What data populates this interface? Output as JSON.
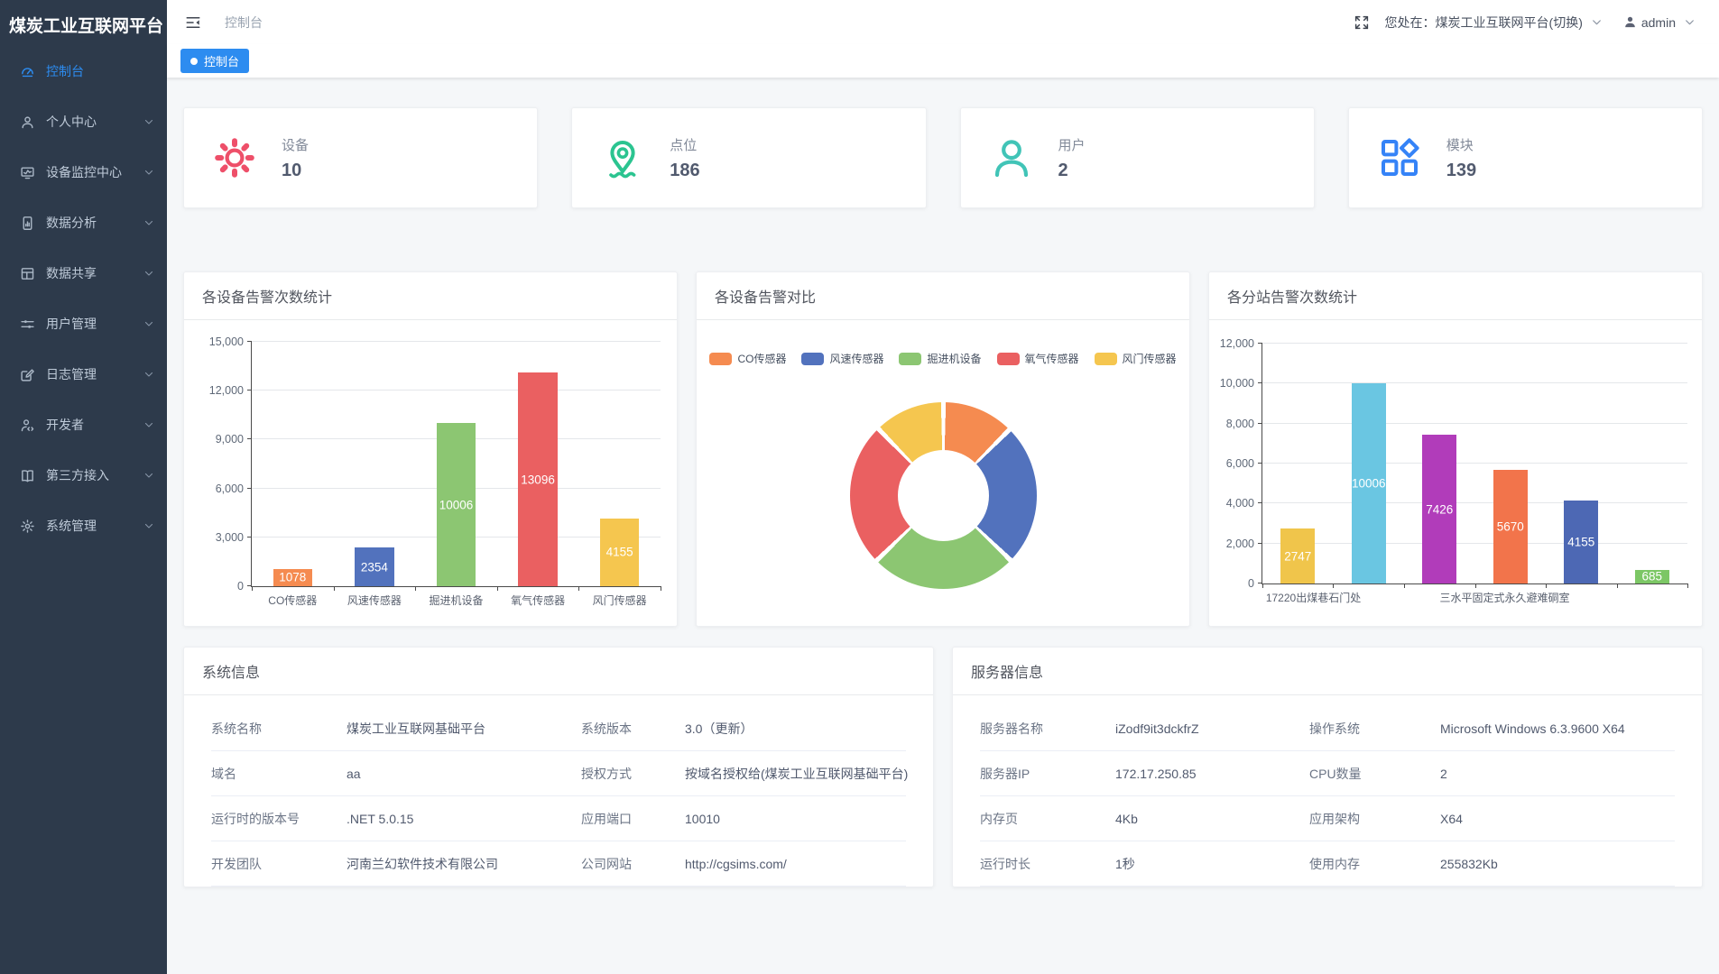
{
  "app": {
    "title": "煤炭工业互联网平台"
  },
  "colors": {
    "primary": "#2d8cf0",
    "sidebar_bg": "#2d3a4b",
    "device_palette": [
      "#f58b50",
      "#5272bd",
      "#8cc672",
      "#ea6061",
      "#f5c64f"
    ],
    "station_palette": [
      "#f0c54b",
      "#6ac6e2",
      "#b13cba",
      "#f2744b",
      "#4d68b4",
      "#7cc765"
    ]
  },
  "sidebar": {
    "items": [
      {
        "id": "console",
        "label": "控制台",
        "icon": "dashboard-icon",
        "active": true,
        "expandable": false
      },
      {
        "id": "personal",
        "label": "个人中心",
        "icon": "person-icon",
        "active": false,
        "expandable": true
      },
      {
        "id": "device-monitor",
        "label": "设备监控中心",
        "icon": "monitor-icon",
        "active": false,
        "expandable": true
      },
      {
        "id": "data-analysis",
        "label": "数据分析",
        "icon": "phone-chart-icon",
        "active": false,
        "expandable": true
      },
      {
        "id": "data-share",
        "label": "数据共享",
        "icon": "news-icon",
        "active": false,
        "expandable": true
      },
      {
        "id": "user-manage",
        "label": "用户管理",
        "icon": "sliders-icon",
        "active": false,
        "expandable": true
      },
      {
        "id": "log-manage",
        "label": "日志管理",
        "icon": "edit-square-icon",
        "active": false,
        "expandable": true
      },
      {
        "id": "developer",
        "label": "开发者",
        "icon": "dev-person-icon",
        "active": false,
        "expandable": true
      },
      {
        "id": "third-party",
        "label": "第三方接入",
        "icon": "book-icon",
        "active": false,
        "expandable": true
      },
      {
        "id": "system-manage",
        "label": "系统管理",
        "icon": "gear-small-icon",
        "active": false,
        "expandable": true
      }
    ]
  },
  "header": {
    "breadcrumb": "控制台",
    "location_label": "您处在：煤炭工业互联网平台(切换)",
    "user": "admin"
  },
  "tabs": [
    {
      "label": "控制台",
      "active": true
    }
  ],
  "stats": [
    {
      "label": "设备",
      "value": "10",
      "icon": "gear-big-icon",
      "color": "#ee4f69"
    },
    {
      "label": "点位",
      "value": "186",
      "icon": "location-pin-icon",
      "color": "#2bc490"
    },
    {
      "label": "用户",
      "value": "2",
      "icon": "users-icon",
      "color": "#41c4b7"
    },
    {
      "label": "模块",
      "value": "139",
      "icon": "modules-icon",
      "color": "#3583f7"
    }
  ],
  "chart_data": [
    {
      "type": "bar",
      "title": "各设备告警次数统计",
      "categories": [
        "CO传感器",
        "风速传感器",
        "掘进机设备",
        "氧气传感器",
        "风门传感器"
      ],
      "values": [
        1078,
        2354,
        10006,
        13096,
        4155
      ],
      "colors": [
        "#f58b50",
        "#5272bd",
        "#8cc672",
        "#ea6061",
        "#f5c64f"
      ],
      "ylim": [
        0,
        15000
      ],
      "ytick_step": 3000,
      "grid": true,
      "value_labels": "inside-white"
    },
    {
      "type": "pie",
      "subtype": "donut",
      "title": "各设备告警对比",
      "legend_position": "top",
      "categories": [
        "CO传感器",
        "风速传感器",
        "掘进机设备",
        "氧气传感器",
        "风门传感器"
      ],
      "colors": [
        "#f58b50",
        "#5272bd",
        "#8cc672",
        "#ea6061",
        "#f5c64f"
      ],
      "proportions_pct_estimated": [
        12.5,
        24.7,
        25.5,
        25.0,
        12.3
      ],
      "start_angle_deg": 0,
      "inner_radius_pct": 51
    },
    {
      "type": "bar",
      "title": "各分站告警次数统计",
      "values": [
        2747,
        10006,
        7426,
        5670,
        4155,
        685
      ],
      "colors": [
        "#f0c54b",
        "#6ac6e2",
        "#b13cba",
        "#f2744b",
        "#4d68b4",
        "#7cc765"
      ],
      "ylim": [
        0,
        12000
      ],
      "ytick_step": 2000,
      "grid": true,
      "value_labels": "inside-white",
      "x_group_labels": [
        {
          "text": "17220出煤巷石门处",
          "left_pct": 12
        },
        {
          "text": "三水平固定式永久避难硐室",
          "left_pct": 57
        }
      ]
    }
  ],
  "system_info": {
    "title": "系统信息",
    "rows": [
      [
        {
          "label": "系统名称",
          "value": "煤炭工业互联网基础平台"
        },
        {
          "label": "系统版本",
          "value": "3.0（更新）"
        }
      ],
      [
        {
          "label": "域名",
          "value": "aa"
        },
        {
          "label": "授权方式",
          "value": "按域名授权给(煤炭工业互联网基础平台)"
        }
      ],
      [
        {
          "label": "运行时的版本号",
          "value": ".NET 5.0.15"
        },
        {
          "label": "应用端口",
          "value": "10010"
        }
      ],
      [
        {
          "label": "开发团队",
          "value": "河南兰幻软件技术有限公司"
        },
        {
          "label": "公司网站",
          "value": "http://cgsims.com/"
        }
      ]
    ]
  },
  "server_info": {
    "title": "服务器信息",
    "rows": [
      [
        {
          "label": "服务器名称",
          "value": "iZodf9it3dckfrZ"
        },
        {
          "label": "操作系统",
          "value": "Microsoft Windows 6.3.9600 X64"
        }
      ],
      [
        {
          "label": "服务器IP",
          "value": "172.17.250.85"
        },
        {
          "label": "CPU数量",
          "value": "2"
        }
      ],
      [
        {
          "label": "内存页",
          "value": "4Kb"
        },
        {
          "label": "应用架构",
          "value": "X64"
        }
      ],
      [
        {
          "label": "运行时长",
          "value": "1秒"
        },
        {
          "label": "使用内存",
          "value": "255832Kb"
        }
      ]
    ]
  }
}
